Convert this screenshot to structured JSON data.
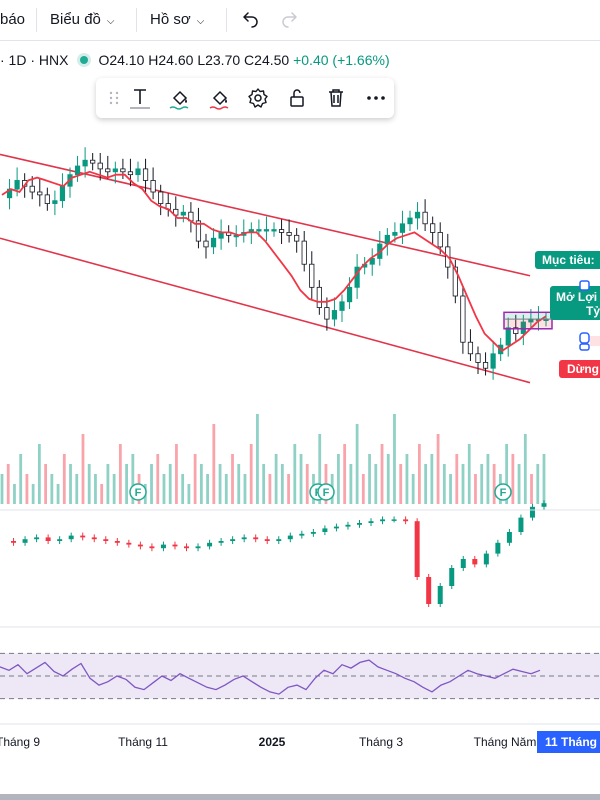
{
  "toolbar": {
    "partial_label": "báo",
    "chart_menu_label": "Biểu đồ",
    "profile_menu_label": "Hồ sơ",
    "undo_icon": "undo-icon",
    "redo_icon": "redo-icon"
  },
  "legend": {
    "symbol": "· 1D · HNX",
    "open": "O24.10",
    "high": "H24.60",
    "low": "L23.70",
    "close": "C24.50",
    "change": "+0.40 (+1.66%)"
  },
  "drawing_toolbar": {
    "icons": [
      "text-icon",
      "fill-color-icon",
      "line-color-icon",
      "settings-gear-icon",
      "lock-icon",
      "delete-trash-icon",
      "more-icon"
    ]
  },
  "position_labels": {
    "target": "Mục tiêu:",
    "open_pl": "Mở Lợi",
    "ratio": "Tỷ",
    "stop": "Dừng:"
  },
  "time_axis": {
    "labels": [
      "Tháng 9",
      "Tháng 11",
      "2025",
      "Tháng 3",
      "Tháng Năm"
    ],
    "highlight": "11 Tháng"
  },
  "event_markers": {
    "symbol": "F"
  },
  "colors": {
    "up": "#089981",
    "down": "#f23645",
    "ma": "#f23645",
    "channel": "#e0354b",
    "rsi": "#7e57c2",
    "rsi_band": "#ede7f6",
    "highlight_bg": "#2962ff"
  },
  "chart_data": [
    {
      "type": "candlestick",
      "series": [
        {
          "name": "",
          "values": [
            21.0,
            21.3,
            21.6,
            21.4,
            21.2,
            21.1,
            20.8,
            20.9,
            21.4,
            21.8,
            22.1,
            22.3,
            22.2,
            22.0,
            21.9,
            22.0,
            21.9,
            21.8,
            22.0,
            21.6,
            21.2,
            20.8,
            20.6,
            20.4,
            20.5,
            20.2,
            19.5,
            19.3,
            19.6,
            19.8,
            19.7,
            19.7,
            19.8,
            19.9,
            19.9,
            19.9,
            19.9,
            19.8,
            19.7,
            19.5,
            18.7,
            17.9,
            17.2,
            16.8,
            17.1,
            17.4,
            17.9,
            18.6,
            18.7,
            18.9,
            19.4,
            19.7,
            19.8,
            20.1,
            20.3,
            20.5,
            20.1,
            19.8,
            19.3,
            18.6,
            17.6,
            16.0,
            15.6,
            15.3,
            15.1,
            15.6,
            15.9,
            16.5,
            16.3,
            16.7,
            16.8,
            16.8,
            16.8
          ]
        },
        {
          "name": "",
          "values": [
            21.1,
            21.3,
            21.2,
            21.6,
            21.7,
            21.6,
            21.5,
            21.4,
            21.7,
            21.8,
            21.9,
            21.8,
            21.7,
            21.8,
            21.8,
            21.5,
            21.3,
            20.9,
            20.7,
            20.6,
            20.3,
            20.3,
            20.1,
            20.1,
            19.9,
            19.8,
            19.8,
            19.7,
            19.8,
            19.8,
            19.5,
            19.1,
            18.7,
            18.3,
            17.8,
            17.5,
            17.4,
            17.4,
            17.5,
            17.8,
            18.2,
            18.6,
            18.9,
            19.1,
            19.4,
            19.6,
            19.7,
            19.8,
            19.6,
            19.4,
            19.2,
            18.9,
            18.3,
            17.6,
            16.9,
            16.3,
            16.0,
            15.7,
            15.9,
            16.1,
            16.4,
            16.7,
            16.9
          ]
        }
      ],
      "channel": {
        "upper": [
          [
            0,
            22.5
          ],
          [
            1,
            18.3
          ]
        ],
        "lower": [
          [
            0,
            19.6
          ],
          [
            1,
            14.6
          ]
        ]
      },
      "position": {
        "entry": 16.8,
        "target": 17.0,
        "stop": 16.5
      }
    },
    {
      "type": "bar",
      "series": [
        {
          "name": "",
          "values": [
            3,
            4,
            2,
            5,
            3,
            2,
            6,
            4,
            3,
            2,
            5,
            4,
            3,
            7,
            4,
            3,
            2,
            4,
            3,
            6,
            4,
            5,
            3,
            2,
            4,
            5,
            3,
            4,
            6,
            3,
            2,
            5,
            4,
            3,
            8,
            4,
            3,
            5,
            4,
            3,
            6,
            9,
            4,
            3,
            5,
            4,
            3,
            6,
            5,
            4,
            3,
            7,
            4,
            3,
            5,
            6,
            4,
            8,
            3,
            5,
            4,
            6,
            5,
            9,
            4,
            5,
            3,
            6,
            4,
            5,
            7,
            4,
            3,
            5,
            4,
            6,
            3,
            4,
            5,
            4,
            3,
            6,
            5,
            4,
            7,
            3,
            4,
            5
          ]
        }
      ]
    },
    {
      "type": "line",
      "series": [
        {
          "name": "",
          "values": [
            0.5,
            0.4,
            0.6,
            0.7,
            0.5,
            0.6,
            0.8,
            0.7,
            0.6,
            0.5,
            0.4,
            0.3,
            0.2,
            0.1,
            0.3,
            0.2,
            0.1,
            0.2,
            0.4,
            0.5,
            0.6,
            0.7,
            0.6,
            0.5,
            0.6,
            0.8,
            0.9,
            1.0,
            1.2,
            1.3,
            1.4,
            1.5,
            1.6,
            1.7,
            1.7,
            1.6,
            -1.5,
            -3.0,
            -2.0,
            -1.0,
            -0.5,
            -0.8,
            -0.2,
            0.4,
            1.0,
            1.8,
            2.4,
            2.6
          ]
        }
      ]
    },
    {
      "type": "line",
      "series": [
        {
          "name": "",
          "values": [
            58,
            55,
            60,
            52,
            57,
            62,
            54,
            50,
            56,
            61,
            48,
            42,
            45,
            50,
            47,
            40,
            38,
            44,
            50,
            46,
            52,
            48,
            44,
            40,
            38,
            42,
            47,
            50,
            45,
            40,
            36,
            34,
            40,
            42,
            38,
            48,
            55,
            52,
            60,
            57,
            62,
            64,
            58,
            55,
            52,
            48,
            45,
            40,
            36,
            42,
            45,
            50,
            55,
            52,
            50,
            48,
            52,
            56,
            54,
            52,
            55
          ]
        }
      ]
    }
  ]
}
